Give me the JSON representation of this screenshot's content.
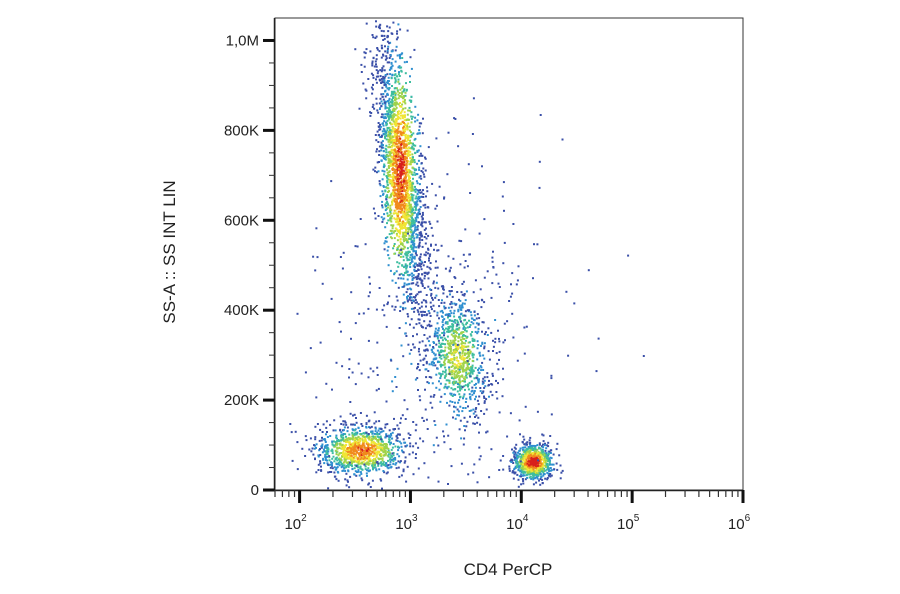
{
  "chart_data": {
    "type": "scatter",
    "subtype": "flow-cytometry density plot (pseudocolor)",
    "title": "",
    "xlabel": "CD4 PerCP",
    "ylabel": "SS-A :: SS INT LIN",
    "x_scale": "log",
    "y_scale": "linear",
    "xlim": [
      60,
      1000000
    ],
    "ylim": [
      0,
      1050000
    ],
    "x_ticks": [
      {
        "value": 100,
        "base": "10",
        "exp": "2"
      },
      {
        "value": 1000,
        "base": "10",
        "exp": "3"
      },
      {
        "value": 10000,
        "base": "10",
        "exp": "4"
      },
      {
        "value": 100000,
        "base": "10",
        "exp": "5"
      },
      {
        "value": 1000000,
        "base": "10",
        "exp": "6"
      }
    ],
    "y_ticks": [
      {
        "value": 0,
        "label": "0"
      },
      {
        "value": 200000,
        "label": "200K"
      },
      {
        "value": 400000,
        "label": "400K"
      },
      {
        "value": 600000,
        "label": "600K"
      },
      {
        "value": 800000,
        "label": "800K"
      },
      {
        "value": 1000000,
        "label": "1,0M"
      }
    ],
    "grid": false,
    "legend": "none",
    "density_colors": [
      "#3a4fa8",
      "#2f8fd0",
      "#3dbd9f",
      "#9fd34a",
      "#f0e534",
      "#f08a1c",
      "#d8201c"
    ],
    "populations": [
      {
        "x_log10_center": 2.55,
        "x_log10_sd": 0.2,
        "y_center": 90000,
        "y_sd": 28000,
        "rotation_deg": 0,
        "relative_size": 0.2,
        "peak_density": 0.85
      },
      {
        "x_log10_center": 2.9,
        "x_log10_sd": 0.09,
        "y_center": 710000,
        "y_sd": 150000,
        "rotation_deg": 72,
        "relative_size": 0.42,
        "peak_density": 0.9
      },
      {
        "x_log10_center": 3.42,
        "x_log10_sd": 0.14,
        "y_center": 300000,
        "y_sd": 70000,
        "rotation_deg": 80,
        "relative_size": 0.16,
        "peak_density": 0.6
      },
      {
        "x_log10_center": 4.1,
        "x_log10_sd": 0.09,
        "y_center": 65000,
        "y_sd": 20000,
        "rotation_deg": 0,
        "relative_size": 0.14,
        "peak_density": 1.0
      },
      {
        "x_log10_center": 3.25,
        "x_log10_sd": 0.55,
        "y_center": 300000,
        "y_sd": 220000,
        "rotation_deg": 0,
        "relative_size": 0.08,
        "peak_density": 0.15
      }
    ]
  }
}
